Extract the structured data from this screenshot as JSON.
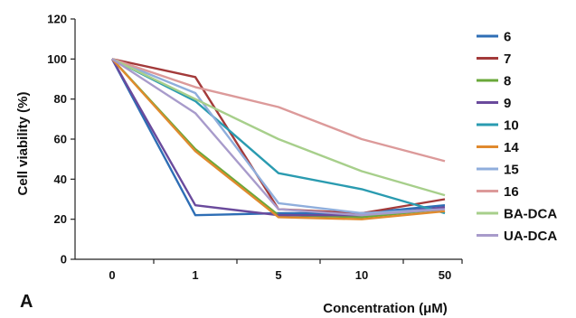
{
  "chart_data": {
    "type": "line",
    "panel_label": "A",
    "title": "",
    "xlabel": "Concentration (μM)",
    "ylabel": "Cell viability (%)",
    "categories": [
      "0",
      "1",
      "5",
      "10",
      "50"
    ],
    "ylim": [
      0,
      120
    ],
    "yticks": [
      0,
      20,
      40,
      60,
      80,
      100,
      120
    ],
    "grid": false,
    "legend_position": "right",
    "series": [
      {
        "name": "6",
        "color": "#2E6EB5",
        "values": [
          100,
          22,
          23,
          23,
          27
        ]
      },
      {
        "name": "7",
        "color": "#A33A3A",
        "values": [
          100,
          91,
          25,
          23,
          30
        ]
      },
      {
        "name": "8",
        "color": "#6AA83A",
        "values": [
          100,
          55,
          22,
          21,
          25
        ]
      },
      {
        "name": "9",
        "color": "#6A4A9C",
        "values": [
          100,
          27,
          22,
          22,
          26
        ]
      },
      {
        "name": "10",
        "color": "#2A9BB0",
        "values": [
          100,
          79,
          43,
          35,
          23
        ]
      },
      {
        "name": "14",
        "color": "#E08A2E",
        "values": [
          100,
          54,
          21,
          20,
          24
        ]
      },
      {
        "name": "15",
        "color": "#8FAEDC",
        "values": [
          100,
          83,
          28,
          23,
          25
        ]
      },
      {
        "name": "16",
        "color": "#DC9A9A",
        "values": [
          100,
          86,
          76,
          60,
          49
        ]
      },
      {
        "name": "BA-DCA",
        "color": "#A7CF8B",
        "values": [
          100,
          80,
          60,
          44,
          32
        ]
      },
      {
        "name": "UA-DCA",
        "color": "#A89BCB",
        "values": [
          100,
          73,
          25,
          22,
          25
        ]
      }
    ]
  }
}
